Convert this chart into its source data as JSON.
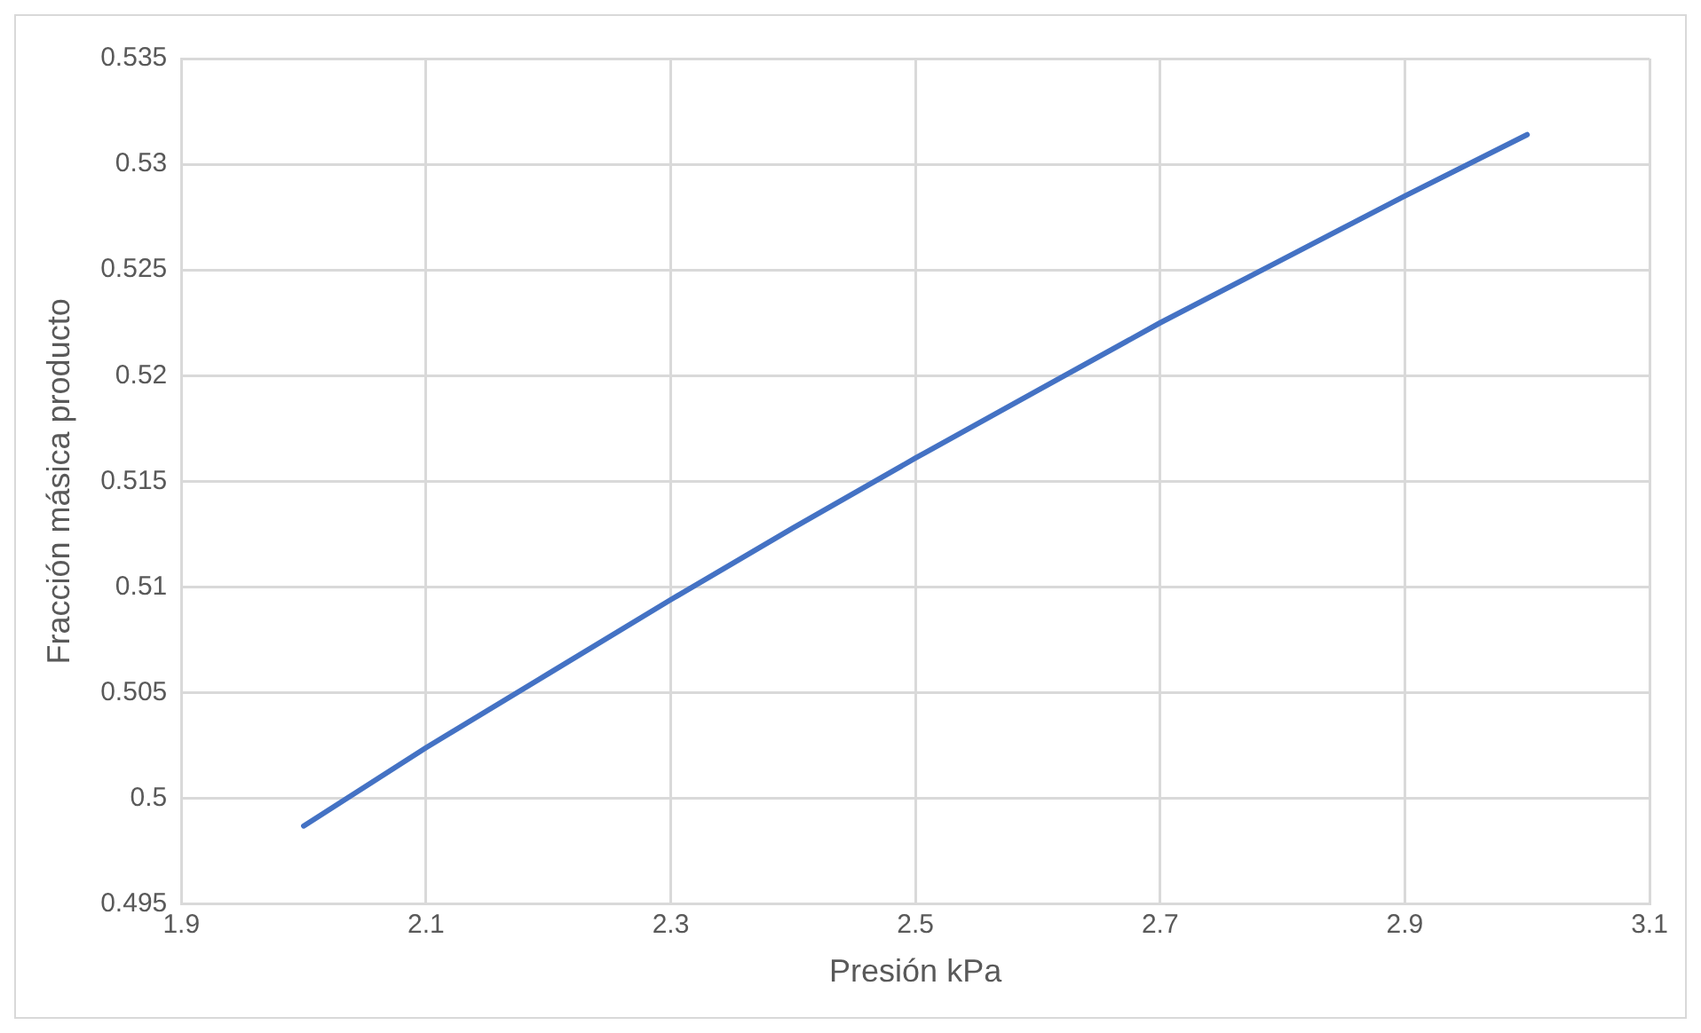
{
  "chart_data": {
    "type": "line",
    "xlabel": "Presión kPa",
    "ylabel": "Fracción másica producto",
    "x": [
      2.0,
      2.1,
      2.2,
      2.3,
      2.4,
      2.5,
      2.6,
      2.7,
      2.8,
      2.9,
      3.0
    ],
    "series": [
      {
        "color": "#4472c4",
        "values": [
          0.4987,
          0.5024,
          0.5059,
          0.5094,
          0.5128,
          0.5161,
          0.5193,
          0.5225,
          0.5255,
          0.5285,
          0.5314
        ]
      }
    ],
    "xlim": [
      1.9,
      3.1
    ],
    "xticks": [
      1.9,
      2.1,
      2.3,
      2.5,
      2.7,
      2.9,
      3.1
    ],
    "ylim": [
      0.495,
      0.535
    ],
    "yticks": [
      0.495,
      0.5,
      0.505,
      0.51,
      0.515,
      0.52,
      0.525,
      0.53,
      0.535
    ],
    "grid": true,
    "legend": false,
    "marker": "none",
    "line_style": "solid"
  }
}
